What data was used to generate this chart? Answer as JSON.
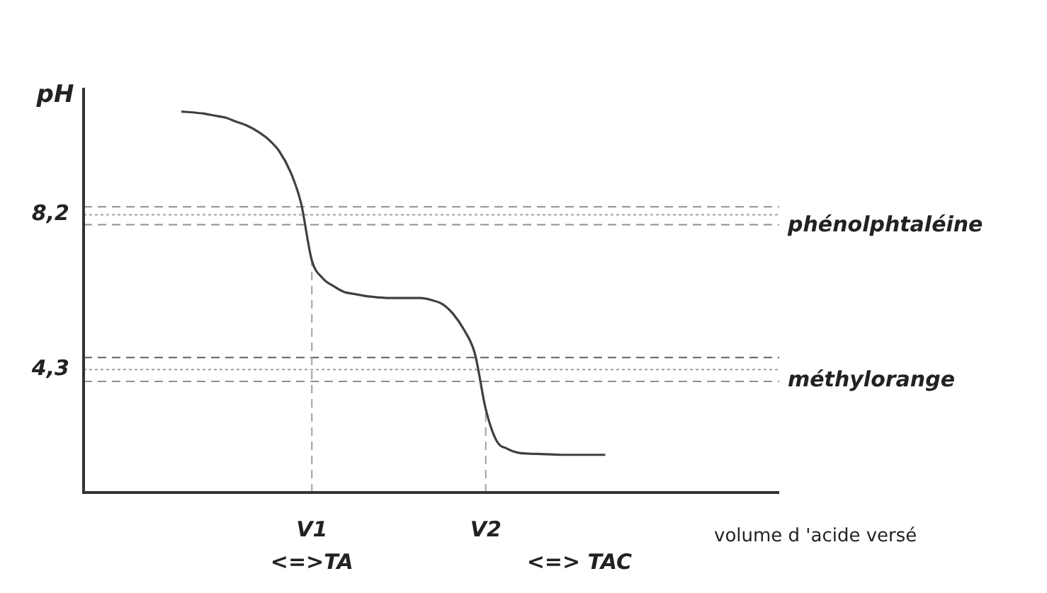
{
  "chart_data": {
    "type": "line",
    "xlabel": "volume d 'acide versé",
    "ylabel": "pH",
    "categories": [
      null,
      null,
      null,
      null,
      null,
      null,
      null,
      null,
      null,
      null,
      null,
      null,
      null,
      null,
      null,
      null,
      null,
      null,
      null,
      null,
      null,
      "V1",
      null,
      null,
      null,
      null,
      null,
      null,
      null,
      null,
      null,
      null,
      null,
      null,
      null,
      null,
      null,
      "V2",
      null,
      null,
      null,
      null,
      null,
      null,
      null,
      null,
      null,
      null,
      null,
      null,
      null,
      null,
      null,
      null,
      null,
      null,
      null,
      null,
      null,
      null,
      null,
      null,
      null,
      null,
      null
    ],
    "series": [
      {
        "color": "#404040",
        "values": [
          null,
          null,
          null,
          null,
          null,
          null,
          null,
          null,
          null,
          10.8,
          10.78,
          10.75,
          10.7,
          10.65,
          10.55,
          10.45,
          10.3,
          10.1,
          9.8,
          9.3,
          8.5,
          7.05,
          6.6,
          6.4,
          6.25,
          6.2,
          6.15,
          6.12,
          6.1,
          6.1,
          6.1,
          6.1,
          6.05,
          5.95,
          5.7,
          5.3,
          4.7,
          3.3,
          2.5,
          2.3,
          2.2,
          2.18,
          2.17,
          2.16,
          2.15,
          2.15,
          2.15,
          2.15,
          2.15,
          null,
          null,
          null,
          null,
          null,
          null,
          null,
          null,
          null,
          null,
          null,
          null,
          null,
          null,
          null,
          null
        ]
      }
    ],
    "ylim": [
      1.2,
      11.4
    ],
    "yticks": [
      {
        "value": 8.2,
        "label": "8,2"
      },
      {
        "value": 4.3,
        "label": "4,3"
      }
    ],
    "grid": false,
    "legend": false,
    "marker": "none",
    "line_style": "solid",
    "ref_lines": [
      {
        "axis": "y",
        "value": 8.4,
        "color": "#909090",
        "line_style": "dashed"
      },
      {
        "axis": "y",
        "value": 8.2,
        "color": "#a0a0a0",
        "line_style": "dotted",
        "label": "phénolphtaléine"
      },
      {
        "axis": "y",
        "value": 7.95,
        "color": "#909090",
        "line_style": "dashed"
      },
      {
        "axis": "y",
        "value": 4.6,
        "color": "#606060",
        "line_style": "dashed"
      },
      {
        "axis": "y",
        "value": 4.3,
        "color": "#a0a0a0",
        "line_style": "dotted",
        "label": "méthylorange"
      },
      {
        "axis": "y",
        "value": 4.0,
        "color": "#909090",
        "line_style": "dashed"
      },
      {
        "axis": "x",
        "value": "V1",
        "color": "#a0a0a0",
        "line_style": "dashed"
      },
      {
        "axis": "x",
        "value": "V2",
        "color": "#a0a0a0",
        "line_style": "dashed"
      }
    ],
    "annotations": [
      "<=>TA",
      "<=> TAC"
    ]
  }
}
